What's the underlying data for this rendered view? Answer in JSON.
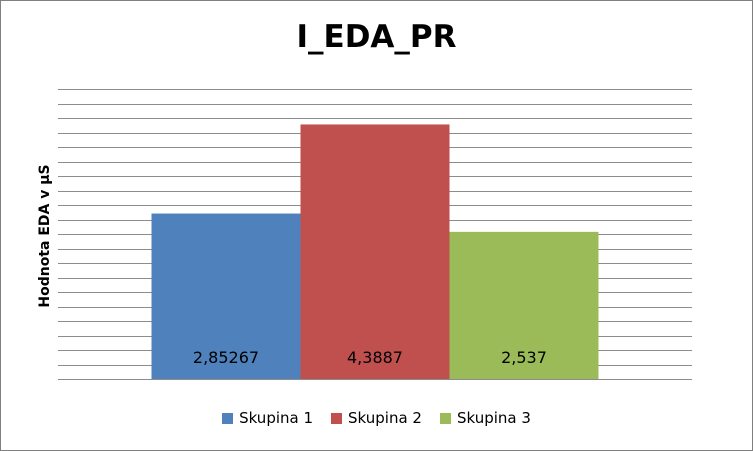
{
  "chart_data": {
    "type": "bar",
    "title": "I_EDA_PR",
    "xlabel": "",
    "ylabel": "Hodnota EDA v µS",
    "ylim": [
      0,
      5
    ],
    "grid": true,
    "legend_position": "bottom",
    "series": [
      {
        "name": "Skupina 1",
        "values": [
          2.85267
        ],
        "label": "2,85267",
        "color": "#4f81bd"
      },
      {
        "name": "Skupina 2",
        "values": [
          4.3887
        ],
        "label": "4,3887",
        "color": "#c0504d"
      },
      {
        "name": "Skupina 3",
        "values": [
          2.537
        ],
        "label": "2,537",
        "color": "#9bbb59"
      }
    ]
  }
}
